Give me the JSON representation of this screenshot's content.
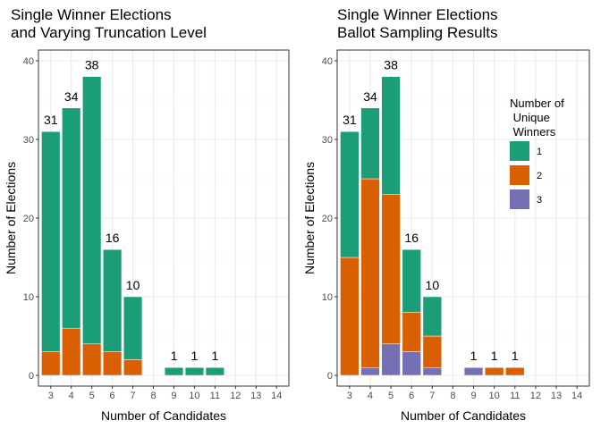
{
  "figure": {
    "background": "#ffffff"
  },
  "palette": {
    "1": "#1b9e77",
    "2": "#d95f02",
    "3": "#7570b3"
  },
  "chart_data": [
    {
      "type": "bar",
      "stacked": true,
      "title_lines": [
        "Single Winner Elections",
        "and Varying Truncation Level"
      ],
      "xlabel": "Number of Candidates",
      "ylabel": "Number of Elections",
      "x_ticks": [
        "3",
        "4",
        "5",
        "6",
        "7",
        "8",
        "9",
        "10",
        "11",
        "12",
        "13",
        "14"
      ],
      "ylim": [
        0,
        40
      ],
      "y_ticks": [
        "0",
        "10",
        "20",
        "30",
        "40"
      ],
      "grid": true,
      "legend": null,
      "categories": [
        "3",
        "4",
        "5",
        "6",
        "7",
        "9",
        "10",
        "11"
      ],
      "totals": [
        31,
        34,
        38,
        16,
        10,
        1,
        1,
        1
      ],
      "total_labels": [
        "31",
        "34",
        "38",
        "16",
        "10",
        "1",
        "1",
        "1"
      ],
      "series": [
        {
          "key": "1",
          "values": [
            28,
            28,
            34,
            13,
            8,
            1,
            1,
            1
          ]
        },
        {
          "key": "2",
          "values": [
            3,
            6,
            4,
            3,
            2,
            0,
            0,
            0
          ]
        },
        {
          "key": "3",
          "values": [
            0,
            0,
            0,
            0,
            0,
            0,
            0,
            0
          ]
        }
      ]
    },
    {
      "type": "bar",
      "stacked": true,
      "title_lines": [
        "Single Winner Elections",
        "Ballot Sampling Results"
      ],
      "xlabel": "Number of Candidates",
      "ylabel": "Number of Elections",
      "x_ticks": [
        "3",
        "4",
        "5",
        "6",
        "7",
        "8",
        "9",
        "10",
        "11",
        "12",
        "13",
        "14"
      ],
      "ylim": [
        0,
        40
      ],
      "y_ticks": [
        "0",
        "10",
        "20",
        "30",
        "40"
      ],
      "grid": true,
      "legend": {
        "title_lines": [
          "Number of",
          " Unique",
          " Winners"
        ],
        "placement": "top-right",
        "items": [
          {
            "key": "1",
            "label": "1"
          },
          {
            "key": "2",
            "label": "2"
          },
          {
            "key": "3",
            "label": "3"
          }
        ]
      },
      "categories": [
        "3",
        "4",
        "5",
        "6",
        "7",
        "9",
        "10",
        "11"
      ],
      "totals": [
        31,
        34,
        38,
        16,
        10,
        1,
        1,
        1
      ],
      "total_labels": [
        "31",
        "34",
        "38",
        "16",
        "10",
        "1",
        "1",
        "1"
      ],
      "series": [
        {
          "key": "1",
          "values": [
            16,
            9,
            15,
            8,
            5,
            0,
            0,
            0
          ]
        },
        {
          "key": "2",
          "values": [
            15,
            24,
            19,
            5,
            4,
            0,
            1,
            1
          ]
        },
        {
          "key": "3",
          "values": [
            0,
            1,
            4,
            3,
            1,
            1,
            0,
            0
          ]
        }
      ]
    }
  ]
}
